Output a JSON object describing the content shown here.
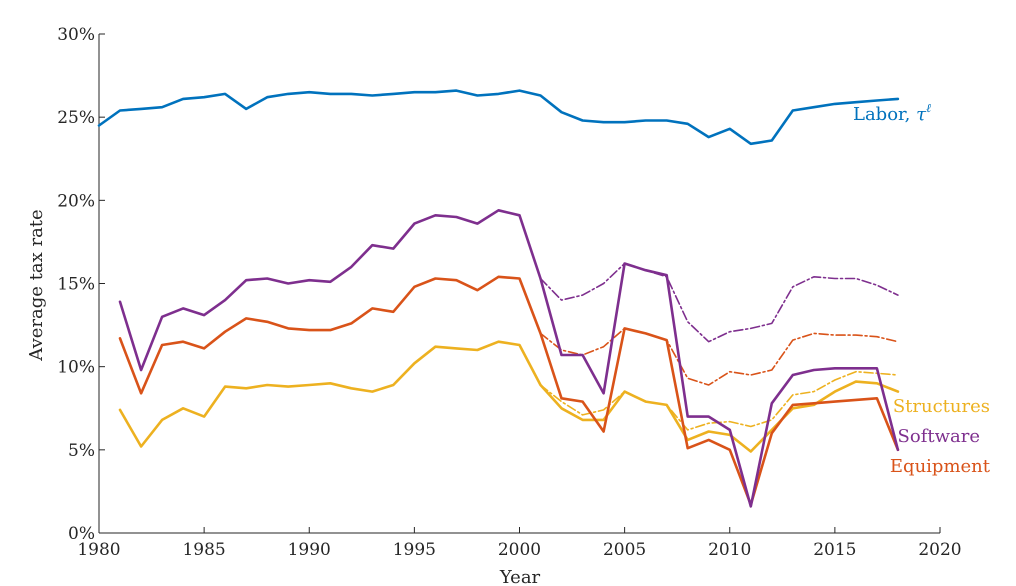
{
  "chart_data": {
    "type": "line",
    "title": "",
    "xlabel": "Year",
    "ylabel": "Average tax rate",
    "xlim": [
      1980,
      2020
    ],
    "ylim": [
      0,
      30
    ],
    "x_ticks": [
      1980,
      1985,
      1990,
      1995,
      2000,
      2005,
      2010,
      2015,
      2020
    ],
    "y_ticks": [
      {
        "value": 0,
        "label": "0%"
      },
      {
        "value": 5,
        "label": "5%"
      },
      {
        "value": 10,
        "label": "10%"
      },
      {
        "value": 15,
        "label": "15%"
      },
      {
        "value": 20,
        "label": "20%"
      },
      {
        "value": 25,
        "label": "25%"
      },
      {
        "value": 30,
        "label": "30%"
      }
    ],
    "grid": false,
    "colors": {
      "labor": "#0072BD",
      "software": "#7E2F8E",
      "equipment": "#D95319",
      "structures": "#EDB120"
    },
    "series": [
      {
        "key": "labor",
        "name": "Labor, τℓ",
        "label_parts": [
          "Labor, ",
          "τ",
          "ℓ"
        ],
        "style": "solid",
        "x": [
          1980,
          1981,
          1982,
          1983,
          1984,
          1985,
          1986,
          1987,
          1988,
          1989,
          1990,
          1991,
          1992,
          1993,
          1994,
          1995,
          1996,
          1997,
          1998,
          1999,
          2000,
          2001,
          2002,
          2003,
          2004,
          2005,
          2006,
          2007,
          2008,
          2009,
          2010,
          2011,
          2012,
          2013,
          2014,
          2015,
          2016,
          2017,
          2018
        ],
        "values": [
          24.5,
          25.4,
          25.5,
          25.6,
          26.1,
          26.2,
          26.4,
          25.5,
          26.2,
          26.4,
          26.5,
          26.4,
          26.4,
          26.3,
          26.4,
          26.5,
          26.5,
          26.6,
          26.3,
          26.4,
          26.6,
          26.3,
          25.3,
          24.8,
          24.7,
          24.7,
          24.8,
          24.8,
          24.6,
          23.8,
          24.3,
          23.4,
          23.6,
          25.4,
          25.6,
          25.8,
          25.9,
          26.0,
          26.1
        ]
      },
      {
        "key": "software",
        "name": "Software",
        "style": "solid",
        "x": [
          1981,
          1982,
          1983,
          1984,
          1985,
          1986,
          1987,
          1988,
          1989,
          1990,
          1991,
          1992,
          1993,
          1994,
          1995,
          1996,
          1997,
          1998,
          1999,
          2000,
          2001,
          2002,
          2003,
          2004,
          2005,
          2006,
          2007,
          2008,
          2009,
          2010,
          2011,
          2012,
          2013,
          2014,
          2015,
          2016,
          2017,
          2018
        ],
        "values": [
          13.9,
          9.8,
          13.0,
          13.5,
          13.1,
          14.0,
          15.2,
          15.3,
          15.0,
          15.2,
          15.1,
          16.0,
          17.3,
          17.1,
          18.6,
          19.1,
          19.0,
          18.6,
          19.4,
          19.1,
          15.3,
          10.7,
          10.7,
          8.4,
          16.2,
          15.8,
          15.5,
          7.0,
          7.0,
          6.2,
          1.6,
          7.8,
          9.5,
          9.8,
          9.9,
          9.9,
          9.9,
          5.0
        ]
      },
      {
        "key": "equipment",
        "name": "Equipment",
        "style": "solid",
        "x": [
          1981,
          1982,
          1983,
          1984,
          1985,
          1986,
          1987,
          1988,
          1989,
          1990,
          1991,
          1992,
          1993,
          1994,
          1995,
          1996,
          1997,
          1998,
          1999,
          2000,
          2001,
          2002,
          2003,
          2004,
          2005,
          2006,
          2007,
          2008,
          2009,
          2010,
          2011,
          2012,
          2013,
          2014,
          2015,
          2016,
          2017,
          2018
        ],
        "values": [
          11.7,
          8.4,
          11.3,
          11.5,
          11.1,
          12.1,
          12.9,
          12.7,
          12.3,
          12.2,
          12.2,
          12.6,
          13.5,
          13.3,
          14.8,
          15.3,
          15.2,
          14.6,
          15.4,
          15.3,
          12.0,
          8.1,
          7.9,
          6.1,
          12.3,
          12.0,
          11.6,
          5.1,
          5.6,
          5.0,
          1.7,
          6.0,
          7.7,
          7.8,
          7.9,
          8.0,
          8.1,
          5.0
        ]
      },
      {
        "key": "structures",
        "name": "Structures",
        "style": "solid",
        "x": [
          1981,
          1982,
          1983,
          1984,
          1985,
          1986,
          1987,
          1988,
          1989,
          1990,
          1991,
          1992,
          1993,
          1994,
          1995,
          1996,
          1997,
          1998,
          1999,
          2000,
          2001,
          2002,
          2003,
          2004,
          2005,
          2006,
          2007,
          2008,
          2009,
          2010,
          2011,
          2012,
          2013,
          2014,
          2015,
          2016,
          2017,
          2018
        ],
        "values": [
          7.4,
          5.2,
          6.8,
          7.5,
          7.0,
          8.8,
          8.7,
          8.9,
          8.8,
          8.9,
          9.0,
          8.7,
          8.5,
          8.9,
          10.2,
          11.2,
          11.1,
          11.0,
          11.5,
          11.3,
          8.9,
          7.5,
          6.8,
          6.8,
          8.5,
          7.9,
          7.7,
          5.6,
          6.1,
          5.9,
          4.9,
          6.2,
          7.5,
          7.7,
          8.5,
          9.1,
          9.0,
          8.5
        ]
      },
      {
        "key": "software",
        "name": "",
        "style": "dashdot",
        "x": [
          2001,
          2002,
          2003,
          2004,
          2005,
          2006,
          2007,
          2008,
          2009,
          2010,
          2011,
          2012,
          2013,
          2014,
          2015,
          2016,
          2017,
          2018
        ],
        "values": [
          15.3,
          14.0,
          14.3,
          15.0,
          16.2,
          15.8,
          15.4,
          12.7,
          11.5,
          12.1,
          12.3,
          12.6,
          14.8,
          15.4,
          15.3,
          15.3,
          14.9,
          14.3
        ]
      },
      {
        "key": "equipment",
        "name": "",
        "style": "dashdot",
        "x": [
          2001,
          2002,
          2003,
          2004,
          2005,
          2006,
          2007,
          2008,
          2009,
          2010,
          2011,
          2012,
          2013,
          2014,
          2015,
          2016,
          2017,
          2018
        ],
        "values": [
          12.0,
          11.0,
          10.7,
          11.2,
          12.3,
          12.0,
          11.6,
          9.3,
          8.9,
          9.7,
          9.5,
          9.8,
          11.6,
          12.0,
          11.9,
          11.9,
          11.8,
          11.5
        ]
      },
      {
        "key": "structures",
        "name": "",
        "style": "dashdot",
        "x": [
          2001,
          2002,
          2003,
          2004,
          2005,
          2006,
          2007,
          2008,
          2009,
          2010,
          2011,
          2012,
          2013,
          2014,
          2015,
          2016,
          2017,
          2018
        ],
        "values": [
          8.9,
          7.9,
          7.1,
          7.4,
          8.5,
          7.9,
          7.7,
          6.2,
          6.6,
          6.7,
          6.4,
          6.8,
          8.3,
          8.5,
          9.2,
          9.7,
          9.6,
          9.5
        ]
      }
    ]
  }
}
